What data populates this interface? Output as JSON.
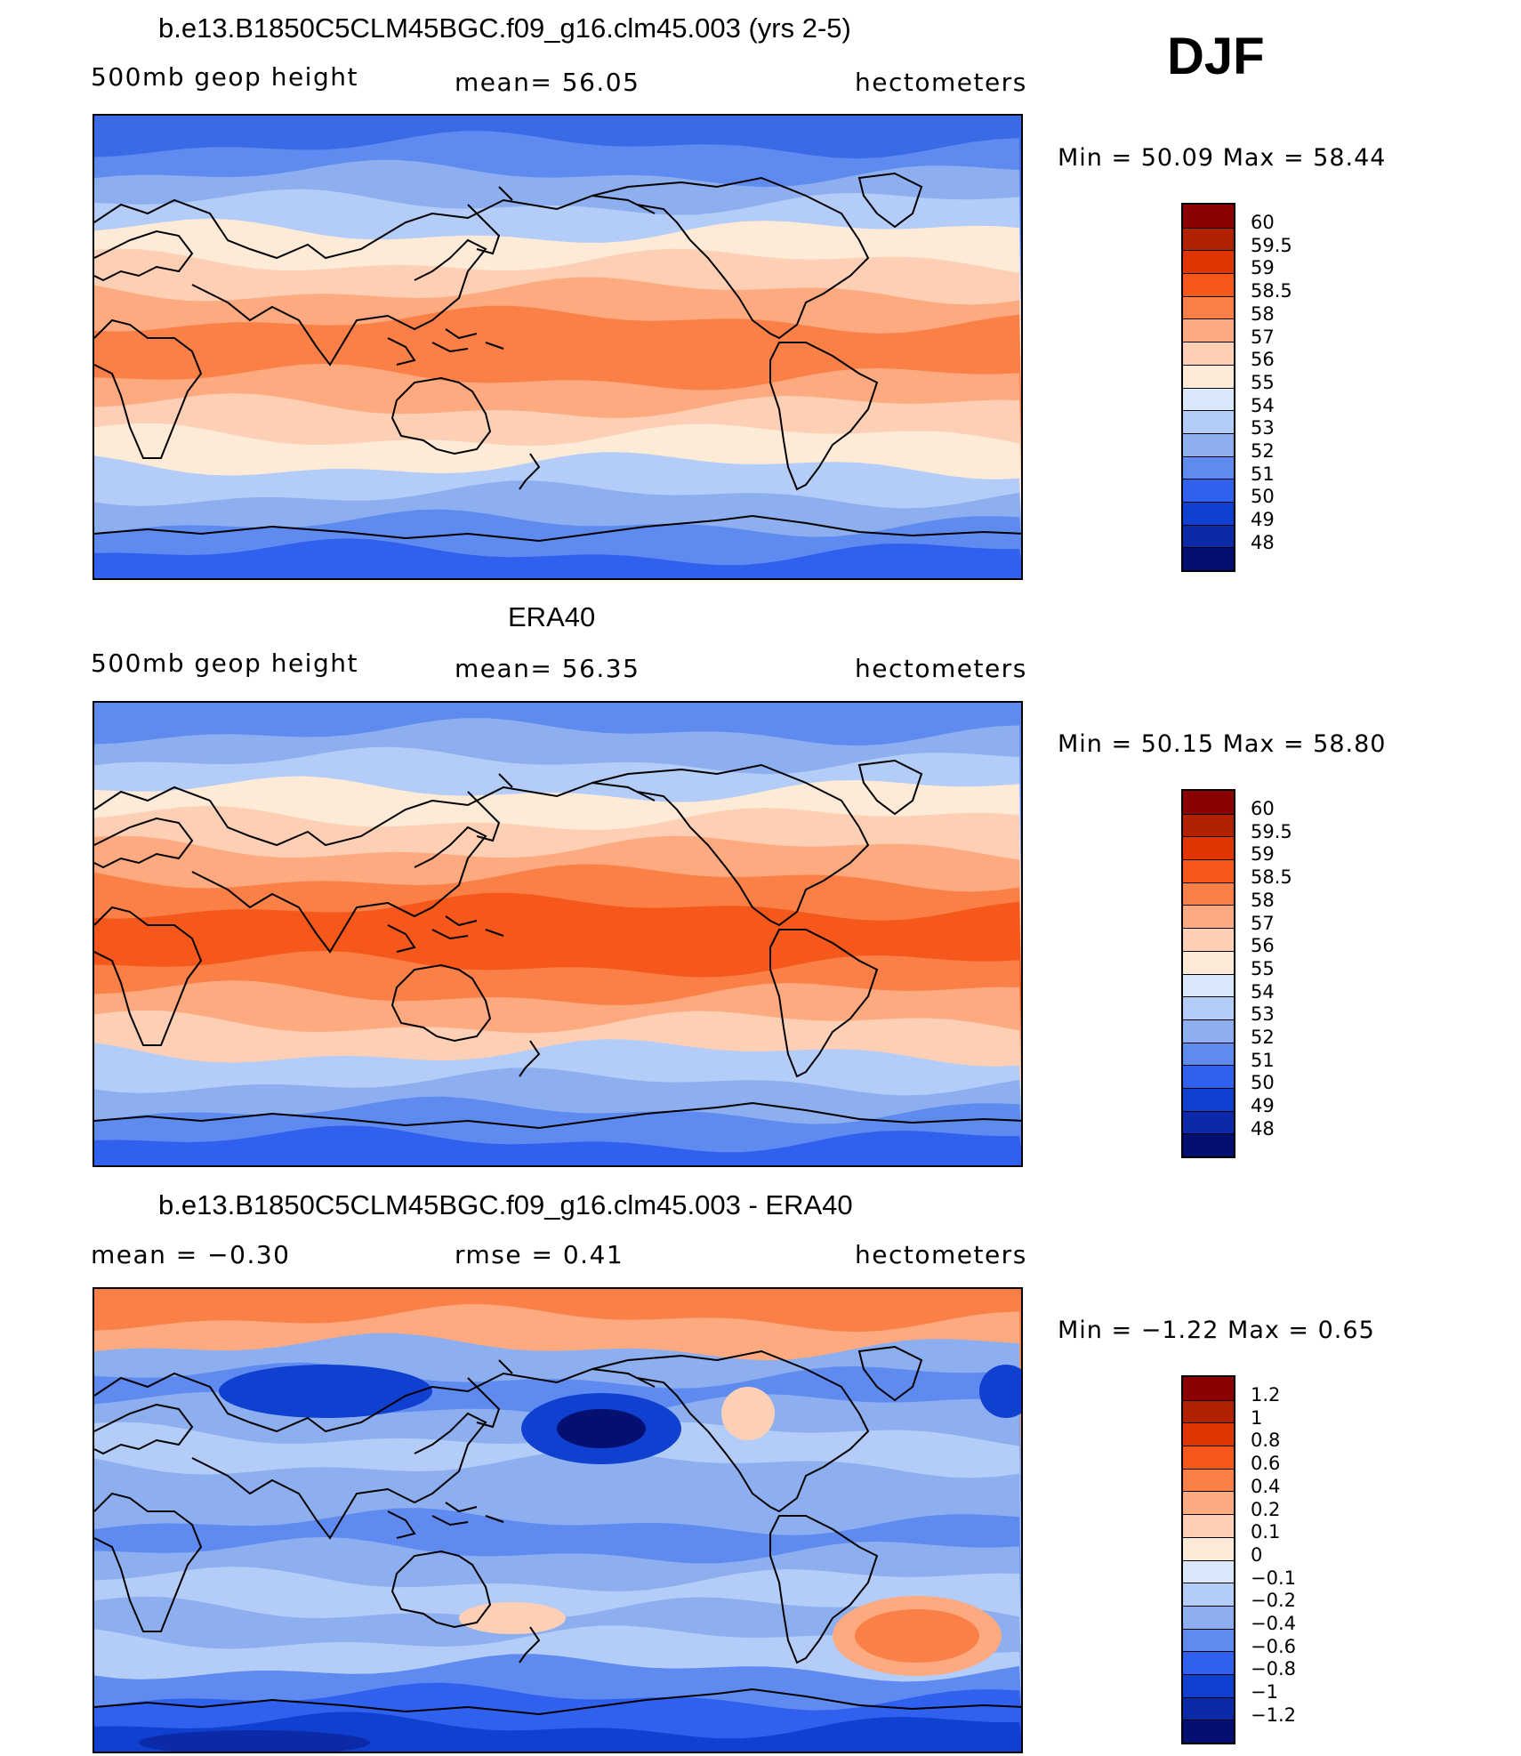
{
  "season": "DJF",
  "panels": [
    {
      "title": "b.e13.B1850C5CLM45BGC.f09_g16.clm45.003 (yrs 2-5)",
      "left_label": "500mb geop height",
      "center_label": "mean=  56.05",
      "right_label": "hectometers",
      "minmax": "Min =   50.09 Max =   58.44",
      "colorbar": {
        "colors": [
          "#8b0000",
          "#b22200",
          "#e03500",
          "#f5581a",
          "#fa8048",
          "#fdaa80",
          "#fdd0b5",
          "#fdebd8",
          "#d9e8fb",
          "#b4ccf8",
          "#8dafef",
          "#5f8af0",
          "#2f60ee",
          "#1040d0",
          "#0b2aa8",
          "#050f70"
        ],
        "labels": [
          "60",
          "59.5",
          "59",
          "58.5",
          "58",
          "57",
          "56",
          "55",
          "54",
          "53",
          "52",
          "51",
          "50",
          "49",
          "48"
        ]
      },
      "map_bands": [
        "#3a6ae6",
        "#5f8af0",
        "#8dafef",
        "#b4ccf8",
        "#fdebd8",
        "#fdd0b5",
        "#fdaa80",
        "#fa8048",
        "#fa8048",
        "#fdaa80",
        "#fdd0b5",
        "#fdebd8",
        "#b4ccf8",
        "#8dafef",
        "#5f8af0",
        "#2f60ee"
      ]
    },
    {
      "title": "ERA40",
      "left_label": "500mb geop height",
      "center_label": "mean=  56.35",
      "right_label": "hectometers",
      "minmax": "Min =   50.15 Max =   58.80",
      "colorbar": {
        "colors": [
          "#8b0000",
          "#b22200",
          "#e03500",
          "#f5581a",
          "#fa8048",
          "#fdaa80",
          "#fdd0b5",
          "#fdebd8",
          "#d9e8fb",
          "#b4ccf8",
          "#8dafef",
          "#5f8af0",
          "#2f60ee",
          "#1040d0",
          "#0b2aa8",
          "#050f70"
        ],
        "labels": [
          "60",
          "59.5",
          "59",
          "58.5",
          "58",
          "57",
          "56",
          "55",
          "54",
          "53",
          "52",
          "51",
          "50",
          "49",
          "48"
        ]
      },
      "map_bands": [
        "#5f8af0",
        "#8dafef",
        "#b4ccf8",
        "#fdebd8",
        "#fdd0b5",
        "#fdaa80",
        "#fa8048",
        "#f5581a",
        "#f5581a",
        "#fa8048",
        "#fdaa80",
        "#fdd0b5",
        "#b4ccf8",
        "#8dafef",
        "#5f8af0",
        "#2f60ee"
      ]
    },
    {
      "title": "b.e13.B1850C5CLM45BGC.f09_g16.clm45.003 - ERA40",
      "left_label": "mean =   −0.30",
      "center_label": "rmse =    0.41",
      "right_label": "hectometers",
      "minmax": "Min =   −1.22 Max =    0.65",
      "colorbar": {
        "colors": [
          "#8b0000",
          "#b22200",
          "#e03500",
          "#f5581a",
          "#fa8048",
          "#fdaa80",
          "#fdd0b5",
          "#fdebd8",
          "#d9e8fb",
          "#b4ccf8",
          "#8dafef",
          "#5f8af0",
          "#2f60ee",
          "#1040d0",
          "#0b2aa8",
          "#050f70"
        ],
        "labels": [
          "1.2",
          "1",
          "0.8",
          "0.6",
          "0.4",
          "0.2",
          "0.1",
          "0",
          "−0.1",
          "−0.2",
          "−0.4",
          "−0.6",
          "−0.8",
          "−1",
          "−1.2"
        ]
      },
      "map_bands": [
        "#fa8048",
        "#fdaa80",
        "#8dafef",
        "#5f8af0",
        "#8dafef",
        "#b4ccf8",
        "#8dafef",
        "#8dafef",
        "#5f8af0",
        "#8dafef",
        "#b4ccf8",
        "#8dafef",
        "#b4ccf8",
        "#5f8af0",
        "#2f60ee",
        "#1040d0"
      ]
    }
  ]
}
